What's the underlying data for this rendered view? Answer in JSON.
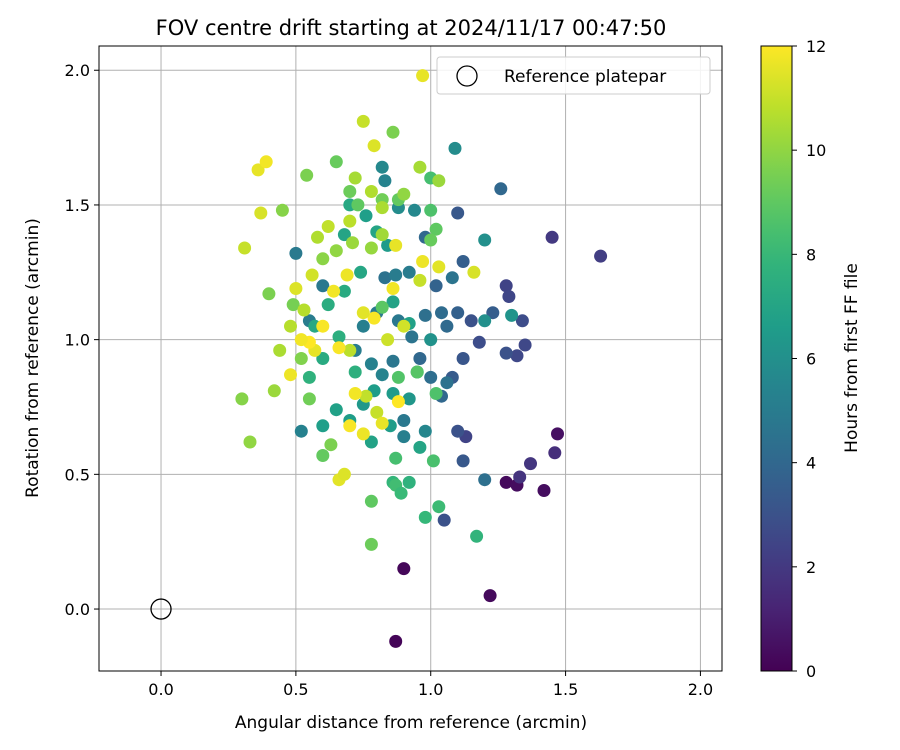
{
  "chart_data": {
    "type": "scatter",
    "title": "FOV centre drift starting at 2024/11/17 00:47:50",
    "xlabel": "Angular distance from reference (arcmin)",
    "ylabel": "Rotation from reference (arcmin)",
    "xlim": [
      -0.23,
      2.08
    ],
    "ylim": [
      -0.23,
      2.09
    ],
    "xticks": [
      0.0,
      0.5,
      1.0,
      1.5,
      2.0
    ],
    "yticks": [
      0.0,
      0.5,
      1.0,
      1.5,
      2.0
    ],
    "xtick_labels": [
      "0.0",
      "0.5",
      "1.0",
      "1.5",
      "2.0"
    ],
    "ytick_labels": [
      "0.0",
      "0.5",
      "1.0",
      "1.5",
      "2.0"
    ],
    "grid": true,
    "legend_position": "top-right",
    "colormap": "viridis",
    "colorbar": {
      "label": "Hours from first FF file",
      "range": [
        0,
        12
      ],
      "ticks": [
        0,
        2,
        4,
        6,
        8,
        10,
        12
      ],
      "tick_labels": [
        "0",
        "2",
        "4",
        "6",
        "8",
        "10",
        "12"
      ]
    },
    "reference": {
      "name": "Reference platepar",
      "x": 0.0,
      "y": 0.0
    },
    "series": [
      {
        "points": [
          [
            0.87,
            -0.12,
            0.1
          ],
          [
            0.9,
            0.15,
            0.2
          ],
          [
            1.22,
            0.05,
            0.3
          ],
          [
            1.28,
            0.47,
            0.3
          ],
          [
            1.32,
            0.46,
            0.4
          ],
          [
            1.42,
            0.44,
            0.4
          ],
          [
            1.47,
            0.65,
            0.5
          ],
          [
            1.46,
            0.58,
            1.6
          ],
          [
            1.33,
            0.49,
            1.8
          ],
          [
            1.37,
            0.54,
            1.9
          ],
          [
            1.45,
            1.38,
            2.0
          ],
          [
            1.63,
            1.31,
            2.2
          ],
          [
            1.28,
            1.2,
            2.4
          ],
          [
            1.29,
            1.16,
            2.5
          ],
          [
            1.32,
            0.94,
            2.6
          ],
          [
            1.35,
            0.98,
            2.6
          ],
          [
            1.34,
            1.07,
            2.8
          ],
          [
            1.28,
            0.95,
            3.0
          ],
          [
            1.18,
            0.99,
            2.8
          ],
          [
            1.15,
            1.07,
            3.0
          ],
          [
            1.12,
            0.93,
            3.2
          ],
          [
            1.13,
            0.64,
            2.4
          ],
          [
            1.1,
            0.66,
            3.0
          ],
          [
            1.12,
            0.55,
            3.3
          ],
          [
            1.08,
            0.86,
            3.4
          ],
          [
            1.1,
            1.47,
            3.3
          ],
          [
            1.26,
            1.56,
            4.0
          ],
          [
            1.23,
            1.1,
            3.5
          ],
          [
            1.12,
            1.29,
            3.6
          ],
          [
            1.1,
            1.1,
            3.7
          ],
          [
            1.05,
            0.33,
            3.0
          ],
          [
            1.02,
            1.2,
            3.8
          ],
          [
            0.98,
            1.38,
            4.0
          ],
          [
            1.04,
            1.1,
            4.2
          ],
          [
            1.06,
            1.05,
            4.1
          ],
          [
            0.96,
            0.93,
            4.0
          ],
          [
            1.0,
            0.86,
            4.3
          ],
          [
            1.04,
            0.79,
            4.0
          ],
          [
            1.06,
            0.84,
            4.5
          ],
          [
            1.2,
            0.48,
            4.4
          ],
          [
            1.08,
            1.23,
            4.6
          ],
          [
            0.98,
            1.09,
            4.4
          ],
          [
            0.93,
            1.01,
            4.6
          ],
          [
            0.88,
            1.07,
            4.8
          ],
          [
            0.83,
            1.23,
            4.5
          ],
          [
            0.86,
            0.92,
            4.7
          ],
          [
            0.9,
            0.7,
            4.8
          ],
          [
            0.92,
            1.25,
            5.0
          ],
          [
            0.87,
            1.24,
            5.0
          ],
          [
            0.8,
            1.1,
            4.9
          ],
          [
            0.75,
            1.05,
            5.2
          ],
          [
            0.72,
            0.96,
            5.1
          ],
          [
            0.78,
            0.91,
            5.3
          ],
          [
            0.82,
            0.87,
            5.4
          ],
          [
            0.9,
            0.64,
            5.2
          ],
          [
            0.98,
            0.66,
            5.5
          ],
          [
            0.52,
            0.66,
            5.3
          ],
          [
            0.55,
            1.07,
            5.0
          ],
          [
            0.6,
            1.2,
            4.8
          ],
          [
            0.5,
            1.32,
            4.9
          ],
          [
            0.94,
            1.48,
            5.6
          ],
          [
            0.88,
            1.49,
            5.8
          ],
          [
            0.82,
            1.64,
            5.6
          ],
          [
            0.83,
            1.59,
            5.4
          ],
          [
            1.09,
            1.71,
            5.8
          ],
          [
            1.2,
            1.37,
            6.0
          ],
          [
            1.3,
            1.09,
            6.2
          ],
          [
            1.2,
            1.07,
            6.0
          ],
          [
            1.0,
            1.0,
            6.1
          ],
          [
            0.95,
            0.88,
            6.4
          ],
          [
            0.92,
            0.78,
            6.3
          ],
          [
            0.86,
            0.8,
            6.5
          ],
          [
            0.79,
            0.81,
            6.6
          ],
          [
            0.75,
            0.76,
            6.4
          ],
          [
            0.7,
            0.7,
            6.6
          ],
          [
            0.65,
            0.74,
            6.8
          ],
          [
            0.6,
            0.68,
            6.7
          ],
          [
            0.78,
            0.62,
            6.9
          ],
          [
            0.85,
            0.68,
            6.6
          ],
          [
            0.96,
            0.6,
            7.0
          ],
          [
            0.92,
            1.06,
            6.8
          ],
          [
            0.86,
            1.14,
            6.9
          ],
          [
            0.84,
            1.35,
            6.5
          ],
          [
            0.8,
            1.4,
            7.0
          ],
          [
            0.76,
            1.46,
            6.7
          ],
          [
            0.7,
            1.5,
            7.2
          ],
          [
            0.68,
            1.39,
            7.0
          ],
          [
            0.74,
            1.25,
            7.1
          ],
          [
            0.68,
            1.18,
            7.3
          ],
          [
            0.62,
            1.13,
            7.4
          ],
          [
            0.57,
            1.05,
            7.2
          ],
          [
            0.66,
            1.01,
            7.5
          ],
          [
            0.72,
            0.88,
            7.6
          ],
          [
            0.6,
            0.93,
            7.3
          ],
          [
            0.55,
            0.86,
            7.7
          ],
          [
            0.98,
            0.34,
            8.0
          ],
          [
            1.03,
            0.38,
            8.2
          ],
          [
            1.17,
            0.27,
            7.8
          ],
          [
            0.86,
            0.47,
            7.9
          ],
          [
            0.87,
            0.46,
            8.3
          ],
          [
            0.89,
            0.43,
            8.1
          ],
          [
            0.92,
            0.47,
            7.7
          ],
          [
            0.87,
            0.56,
            8.4
          ],
          [
            1.01,
            0.55,
            8.5
          ],
          [
            1.02,
            0.8,
            8.6
          ],
          [
            0.95,
            0.88,
            8.8
          ],
          [
            0.88,
            0.86,
            8.7
          ],
          [
            0.82,
            1.12,
            8.9
          ],
          [
            1.0,
            1.48,
            8.6
          ],
          [
            1.0,
            1.6,
            8.4
          ],
          [
            1.02,
            1.41,
            9.0
          ],
          [
            1.0,
            1.37,
            9.2
          ],
          [
            0.88,
            1.52,
            9.1
          ],
          [
            0.82,
            1.52,
            9.4
          ],
          [
            0.73,
            1.5,
            9.0
          ],
          [
            0.7,
            1.55,
            9.3
          ],
          [
            0.65,
            1.66,
            9.2
          ],
          [
            0.86,
            1.77,
            9.6
          ],
          [
            0.78,
            0.4,
            9.0
          ],
          [
            0.78,
            0.24,
            9.3
          ],
          [
            0.6,
            0.57,
            9.1
          ],
          [
            0.63,
            0.61,
            9.6
          ],
          [
            0.55,
            0.78,
            9.4
          ],
          [
            0.52,
            0.93,
            9.7
          ],
          [
            0.49,
            1.13,
            9.5
          ],
          [
            0.45,
            1.48,
            9.8
          ],
          [
            0.54,
            1.61,
            9.6
          ],
          [
            0.6,
            1.3,
            9.9
          ],
          [
            0.65,
            1.33,
            10.0
          ],
          [
            0.71,
            1.36,
            10.2
          ],
          [
            0.78,
            1.34,
            10.1
          ],
          [
            0.82,
            1.39,
            10.3
          ],
          [
            0.9,
            1.54,
            10.0
          ],
          [
            0.96,
            1.64,
            10.4
          ],
          [
            1.03,
            1.59,
            10.2
          ],
          [
            0.82,
            1.49,
            10.5
          ],
          [
            0.78,
            1.55,
            10.6
          ],
          [
            0.72,
            1.6,
            10.4
          ],
          [
            0.3,
            0.78,
            9.8
          ],
          [
            0.33,
            0.62,
            10.0
          ],
          [
            0.42,
            0.81,
            10.2
          ],
          [
            0.4,
            1.17,
            9.6
          ],
          [
            0.48,
            1.05,
            10.7
          ],
          [
            0.44,
            0.96,
            10.5
          ],
          [
            0.7,
            0.96,
            10.8
          ],
          [
            0.76,
            0.79,
            10.9
          ],
          [
            0.8,
            0.73,
            11.0
          ],
          [
            0.84,
            1.0,
            11.1
          ],
          [
            0.9,
            1.05,
            11.2
          ],
          [
            0.96,
            1.22,
            11.0
          ],
          [
            1.16,
            1.25,
            11.3
          ],
          [
            1.03,
            1.27,
            11.5
          ],
          [
            0.97,
            1.29,
            11.7
          ],
          [
            0.87,
            1.35,
            11.6
          ],
          [
            0.86,
            1.19,
            11.8
          ],
          [
            0.79,
            1.08,
            11.9
          ],
          [
            0.75,
            1.1,
            11.5
          ],
          [
            0.69,
            1.24,
            11.7
          ],
          [
            0.64,
            1.18,
            11.8
          ],
          [
            0.6,
            1.05,
            11.9
          ],
          [
            0.57,
            0.96,
            11.6
          ],
          [
            0.55,
            0.99,
            12.0
          ],
          [
            0.52,
            1.0,
            11.8
          ],
          [
            0.48,
            0.87,
            11.7
          ],
          [
            0.66,
            0.97,
            11.9
          ],
          [
            0.72,
            0.8,
            11.8
          ],
          [
            0.75,
            0.65,
            11.7
          ],
          [
            0.7,
            0.68,
            11.9
          ],
          [
            0.82,
            0.69,
            11.6
          ],
          [
            0.88,
            0.77,
            12.0
          ],
          [
            0.66,
            0.48,
            11.5
          ],
          [
            0.68,
            0.5,
            11.4
          ],
          [
            0.36,
            1.63,
            11.6
          ],
          [
            0.39,
            1.66,
            11.8
          ],
          [
            0.37,
            1.47,
            11.3
          ],
          [
            0.31,
            1.34,
            11.0
          ],
          [
            0.97,
            1.98,
            11.6
          ],
          [
            0.75,
            1.81,
            11.0
          ],
          [
            0.79,
            1.72,
            11.4
          ],
          [
            0.7,
            1.44,
            10.8
          ],
          [
            0.58,
            1.38,
            10.6
          ],
          [
            0.62,
            1.42,
            10.9
          ],
          [
            0.56,
            1.24,
            11.2
          ],
          [
            0.5,
            1.19,
            11.4
          ],
          [
            0.53,
            1.11,
            10.7
          ]
        ]
      }
    ]
  }
}
